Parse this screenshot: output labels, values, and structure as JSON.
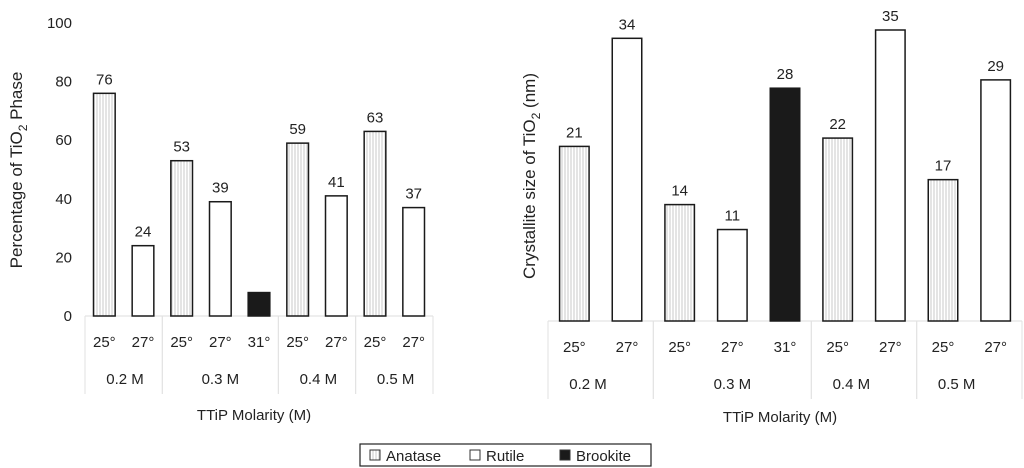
{
  "chart_data": [
    {
      "type": "bar",
      "ylabel": "Percentage of TiO2 Phase",
      "ylabel_main": "Percentage of TiO",
      "ylabel_sub": "2",
      "ylabel_tail": " Phase",
      "xlabel": "TTiP Molarity (M)",
      "ylim": [
        0,
        100
      ],
      "yticks": [
        "0",
        "20",
        "40",
        "60",
        "80",
        "100"
      ],
      "groups": [
        {
          "label": "0.2 M",
          "bars": [
            {
              "temp": "25°",
              "phase": "Anatase",
              "value": 76,
              "label": "76"
            },
            {
              "temp": "27°",
              "phase": "Rutile",
              "value": 24,
              "label": "24"
            }
          ]
        },
        {
          "label": "0.3 M",
          "bars": [
            {
              "temp": "25°",
              "phase": "Anatase",
              "value": 53,
              "label": "53"
            },
            {
              "temp": "27°",
              "phase": "Rutile",
              "value": 39,
              "label": "39"
            },
            {
              "temp": "31°",
              "phase": "Brookite",
              "value": 8,
              "label": ""
            }
          ]
        },
        {
          "label": "0.4 M",
          "bars": [
            {
              "temp": "25°",
              "phase": "Anatase",
              "value": 59,
              "label": "59"
            },
            {
              "temp": "27°",
              "phase": "Rutile",
              "value": 41,
              "label": "41"
            }
          ]
        },
        {
          "label": "0.5 M",
          "bars": [
            {
              "temp": "25°",
              "phase": "Anatase",
              "value": 63,
              "label": "63"
            },
            {
              "temp": "27°",
              "phase": "Rutile",
              "value": 37,
              "label": "37"
            }
          ]
        }
      ]
    },
    {
      "type": "bar",
      "ylabel": "Crystallite size of TiO2 (nm)",
      "ylabel_main": "Crystallite size of TiO",
      "ylabel_sub": "2",
      "ylabel_tail": " (nm)",
      "xlabel": "TTiP Molarity (M)",
      "ylim": [
        0,
        35
      ],
      "yticks": [],
      "groups": [
        {
          "label": "0.2 M",
          "bars": [
            {
              "temp": "25°",
              "phase": "Anatase",
              "value": 21,
              "label": "21"
            },
            {
              "temp": "27°",
              "phase": "Rutile",
              "value": 34,
              "label": "34"
            }
          ]
        },
        {
          "label": "0.3 M",
          "bars": [
            {
              "temp": "25°",
              "phase": "Anatase",
              "value": 14,
              "label": "14"
            },
            {
              "temp": "27°",
              "phase": "Rutile",
              "value": 11,
              "label": "11"
            },
            {
              "temp": "31°",
              "phase": "Brookite",
              "value": 28,
              "label": "28"
            }
          ]
        },
        {
          "label": "0.4 M",
          "bars": [
            {
              "temp": "25°",
              "phase": "Anatase",
              "value": 22,
              "label": "22"
            },
            {
              "temp": "27°",
              "phase": "Rutile",
              "value": 35,
              "label": "35"
            }
          ]
        },
        {
          "label": "0.5 M",
          "bars": [
            {
              "temp": "25°",
              "phase": "Anatase",
              "value": 17,
              "label": "17"
            },
            {
              "temp": "27°",
              "phase": "Rutile",
              "value": 29,
              "label": "29"
            }
          ]
        }
      ]
    }
  ],
  "legend": [
    {
      "name": "Anatase",
      "color": "#e8e8e8"
    },
    {
      "name": "Rutile",
      "color": "#ffffff"
    },
    {
      "name": "Brookite",
      "color": "#1a1a1a"
    }
  ]
}
